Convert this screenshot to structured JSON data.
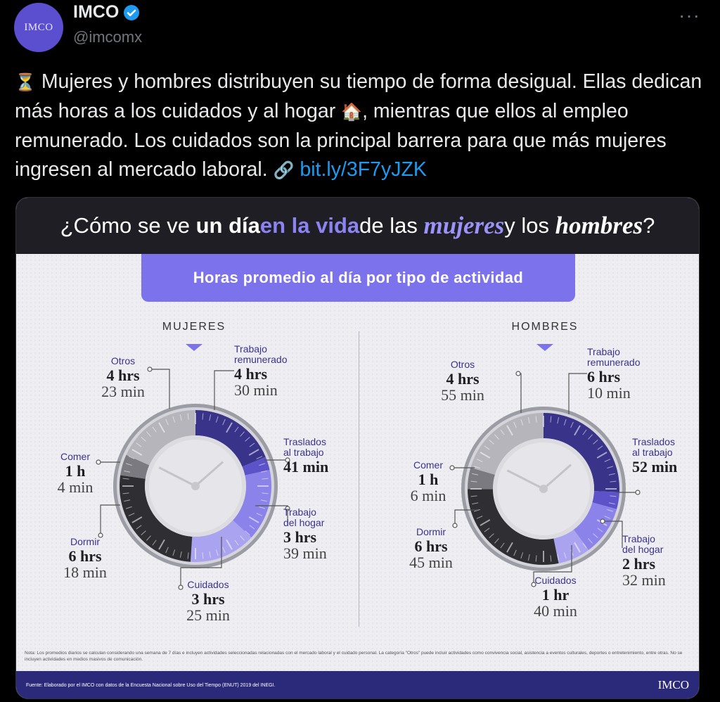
{
  "tweet": {
    "author_name": "IMCO",
    "handle": "@imcomx",
    "avatar_text": "IMCO",
    "more_label": "···",
    "text_part1": "Mujeres y hombres distribuyen su tiempo de forma desigual. Ellas dedican más horas a los cuidados y al hogar",
    "text_part2": ", mientras que ellos al empleo remunerado. Los cuidados son la principal barrera para que más mujeres ingresen al mercado laboral.",
    "link": "bit.ly/3F7yJZK",
    "emoji_start": "⏳",
    "emoji_house": "🏠",
    "emoji_link": "🔗"
  },
  "infographic": {
    "title_1": "¿Cómo se ve ",
    "title_2": "un día",
    "title_3": " en la vida",
    "title_4": " de las ",
    "title_5": "mujeres",
    "title_6": " y los ",
    "title_7": "hombres",
    "title_8": "?",
    "subtitle": "Horas promedio al día por tipo de actividad",
    "note": "Nota: Los promedios diarios se calculan considerando una semana de 7 días e incluyen actividades seleccionadas relacionadas con el mercado laboral y el cuidado personal. La categoría \"Otros\" puede incluir actividades como convivencia social, asistencia a eventos culturales, deportes o entretenimiento, entre otras. No se incluyen actividades en medios masivos de comunicación.",
    "source": "Fuente: Elaborado por el IMCO con datos de la Encuesta Nacional sobre Uso del Tiempo (ENUT) 2019 del INEGI.",
    "logo": "IMCO"
  },
  "colors": {
    "work": "#3a338a",
    "commute": "#5c53c9",
    "home": "#8b82ea",
    "care": "#aaa3ef",
    "sleep": "#2f2f33",
    "eat": "#7a7a80",
    "other": "#b5b5bb",
    "accent": "#7b72ec"
  },
  "chart_data": [
    {
      "type": "pie",
      "title": "MUJERES",
      "unit": "hours per day",
      "categories": [
        "Trabajo remunerado",
        "Traslados al trabajo",
        "Trabajo del hogar",
        "Cuidados",
        "Dormir",
        "Comer",
        "Otros"
      ],
      "values_minutes": [
        270,
        41,
        219,
        205,
        378,
        64,
        263
      ],
      "labels": [
        {
          "name": "Otros",
          "v1": "4 hrs",
          "v2": "23 min"
        },
        {
          "name": "Trabajo remunerado",
          "v1": "4 hrs",
          "v2": "30 min"
        },
        {
          "name": "Comer",
          "v1": "1 h",
          "v2": "4 min"
        },
        {
          "name": "Traslados al trabajo",
          "v1": "41 min",
          "v2": ""
        },
        {
          "name": "Trabajo del hogar",
          "v1": "3 hrs",
          "v2": "39 min"
        },
        {
          "name": "Dormir",
          "v1": "6 hrs",
          "v2": "18 min"
        },
        {
          "name": "Cuidados",
          "v1": "3 hrs",
          "v2": "25 min"
        }
      ]
    },
    {
      "type": "pie",
      "title": "HOMBRES",
      "unit": "hours per day",
      "categories": [
        "Trabajo remunerado",
        "Traslados al trabajo",
        "Trabajo del hogar",
        "Cuidados",
        "Dormir",
        "Comer",
        "Otros"
      ],
      "values_minutes": [
        370,
        52,
        152,
        100,
        405,
        66,
        295
      ],
      "labels": [
        {
          "name": "Otros",
          "v1": "4 hrs",
          "v2": "55 min"
        },
        {
          "name": "Trabajo remunerado",
          "v1": "6 hrs",
          "v2": "10 min"
        },
        {
          "name": "Traslados al trabajo",
          "v1": "52 min",
          "v2": ""
        },
        {
          "name": "Comer",
          "v1": "1 h",
          "v2": "6 min"
        },
        {
          "name": "Dormir",
          "v1": "6 hrs",
          "v2": "45 min"
        },
        {
          "name": "Trabajo del hogar",
          "v1": "2 hrs",
          "v2": "32 min"
        },
        {
          "name": "Cuidados",
          "v1": "1 hr",
          "v2": "40 min"
        }
      ]
    }
  ]
}
